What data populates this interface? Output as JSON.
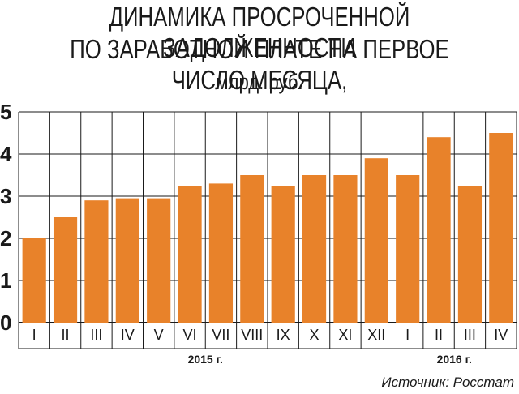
{
  "title": {
    "line1": "ДИНАМИКА ПРОСРОЧЕННОЙ ЗАДОЛЖЕННОСТИ",
    "line2": "ПО ЗАРАБОТНОЙ ПЛАТЕ НА ПЕРВОЕ ЧИСЛО МЕСЯЦА,",
    "line3": "млрд. руб."
  },
  "source": "Источник: Росстат",
  "colors": {
    "bar": "#e8822a",
    "grid": "#1a1a1a"
  },
  "chart_data": {
    "type": "bar",
    "title": "ДИНАМИКА ПРОСРОЧЕННОЙ ЗАДОЛЖЕННОСТИ ПО ЗАРАБОТНОЙ ПЛАТЕ НА ПЕРВОЕ ЧИСЛО МЕСЯЦА, млрд. руб.",
    "categories": [
      "I",
      "II",
      "III",
      "IV",
      "V",
      "VI",
      "VII",
      "VIII",
      "IX",
      "X",
      "XI",
      "XII",
      "I",
      "II",
      "III",
      "IV"
    ],
    "values": [
      2.0,
      2.5,
      2.9,
      2.95,
      2.95,
      3.25,
      3.3,
      3.5,
      3.25,
      3.5,
      3.5,
      3.9,
      3.5,
      4.4,
      3.25,
      4.5
    ],
    "year_groups": [
      {
        "label": "2015 г.",
        "start": 0,
        "end": 11
      },
      {
        "label": "2016 г.",
        "start": 12,
        "end": 15
      }
    ],
    "yticks": [
      "0",
      "1",
      "2",
      "3",
      "4",
      "5"
    ],
    "ylim": [
      0,
      5
    ],
    "grid": true
  }
}
